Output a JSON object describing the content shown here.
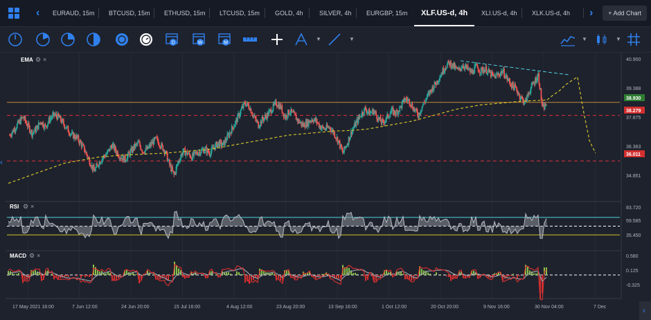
{
  "tabs": [
    {
      "label": "EURAUD, 15m"
    },
    {
      "label": "BTCUSD, 15m"
    },
    {
      "label": "ETHUSD, 15m"
    },
    {
      "label": "LTCUSD, 15m"
    },
    {
      "label": "GOLD, 4h"
    },
    {
      "label": "SILVER, 4h"
    },
    {
      "label": "EURGBP, 15m"
    },
    {
      "label": "XLF.US-d, 4h"
    },
    {
      "label": "XLI.US-d, 4h"
    },
    {
      "label": "XLK.US-d, 4h"
    }
  ],
  "add_chart_label": "+ Add Chart",
  "indicators": {
    "ema": "EMA",
    "rsi": "RSI",
    "macd": "MACD"
  },
  "colors": {
    "accent": "#2f80ed",
    "up": "#26a69a",
    "down": "#ef5350",
    "ema": "#d4c22b",
    "support": "#e0303a",
    "rsi_line": "#4fd4e0",
    "macd_line": "#d32f2f",
    "signal_line": "#9aa0a6",
    "hist_up": "#8bc34a"
  },
  "chart_data": {
    "type": "candlestick",
    "price_axis_ticks": [
      "40.900",
      "39.388",
      "37.875",
      "36.363",
      "34.851"
    ],
    "price_tags": [
      {
        "value": "38.930",
        "color": "#2e7d32"
      },
      {
        "value": "38.279",
        "color": "#d32f2f"
      },
      {
        "value": "36.011",
        "color": "#d32f2f"
      }
    ],
    "rsi_axis_ticks": [
      "83.720",
      "59.585",
      "35.450"
    ],
    "macd_axis_ticks": [
      "0.580",
      "0.125",
      "-0.325"
    ],
    "x_labels": [
      "17 May 2021 16:00",
      "7 Jun 12:00",
      "24 Jun 20:00",
      "15 Jul 16:00",
      "4 Aug 12:00",
      "23 Aug 20:00",
      "13 Sep 16:00",
      "1 Oct 12:00",
      "20 Oct 20:00",
      "9 Nov 16:00",
      "30 Nov 04:00",
      "7 Dec"
    ],
    "ylim": [
      34.3,
      41.2
    ],
    "horizontal_levels": {
      "resistance": 38.93,
      "support_high": 38.279,
      "support_low": 36.011
    },
    "price_path": [
      37.3,
      37.6,
      37.9,
      38.2,
      37.8,
      37.4,
      37.6,
      38.0,
      37.7,
      38.1,
      38.3,
      38.2,
      37.9,
      37.6,
      37.3,
      37.2,
      36.9,
      36.5,
      36.0,
      35.5,
      35.9,
      36.2,
      36.4,
      36.8,
      36.5,
      36.2,
      36.1,
      36.4,
      36.7,
      36.9,
      36.5,
      36.6,
      36.9,
      37.1,
      36.8,
      36.5,
      35.8,
      35.3,
      36.0,
      36.5,
      36.4,
      36.2,
      36.4,
      36.5,
      36.6,
      36.4,
      36.7,
      36.9,
      36.8,
      37.2,
      37.6,
      38.0,
      38.5,
      38.9,
      38.7,
      38.2,
      37.8,
      38.1,
      38.3,
      38.6,
      38.9,
      38.7,
      38.2,
      38.5,
      38.3,
      38.0,
      37.8,
      37.9,
      38.1,
      38.0,
      37.7,
      37.6,
      37.7,
      37.4,
      37.0,
      36.4,
      36.9,
      37.5,
      37.9,
      38.3,
      38.6,
      38.4,
      38.5,
      38.1,
      37.9,
      38.2,
      38.5,
      38.4,
      38.7,
      39.1,
      39.0,
      38.6,
      38.3,
      38.8,
      39.2,
      39.6,
      39.9,
      40.3,
      40.7,
      40.9,
      40.7,
      40.5,
      40.8,
      40.6,
      40.4,
      40.7,
      40.5,
      40.6,
      40.4,
      40.2,
      40.3,
      40.5,
      40.1,
      39.8,
      39.6,
      39.2,
      38.9,
      39.5,
      39.9,
      40.3,
      38.6,
      38.9
    ],
    "ema_path": [
      34.9,
      35.1,
      35.3,
      35.5,
      35.7,
      35.9,
      36.0,
      36.1,
      36.2,
      36.25,
      36.3,
      36.32,
      36.35,
      36.38,
      36.4,
      36.45,
      36.5,
      36.55,
      36.6,
      36.7,
      36.8,
      36.9,
      37.0,
      37.1,
      37.2,
      37.3,
      37.35,
      37.4,
      37.45,
      37.5,
      37.52,
      37.55,
      37.6,
      37.7,
      37.8,
      37.9,
      38.0,
      38.15,
      38.3,
      38.45,
      38.6,
      38.7,
      38.8,
      38.85,
      38.9,
      38.95,
      39.0,
      39.02,
      39.05
    ],
    "ema_projection": [
      39.05,
      39.3,
      39.5,
      39.8,
      40.0,
      40.2,
      38.5,
      37.0,
      36.4
    ],
    "trendline": [
      [
        0.0,
        41.0
      ],
      [
        1.0,
        40.3
      ]
    ],
    "rsi": {
      "overbought": 70,
      "oversold": 30,
      "mid": 50
    },
    "series": [
      {
        "name": "EMA"
      },
      {
        "name": "RSI"
      },
      {
        "name": "MACD"
      }
    ]
  }
}
